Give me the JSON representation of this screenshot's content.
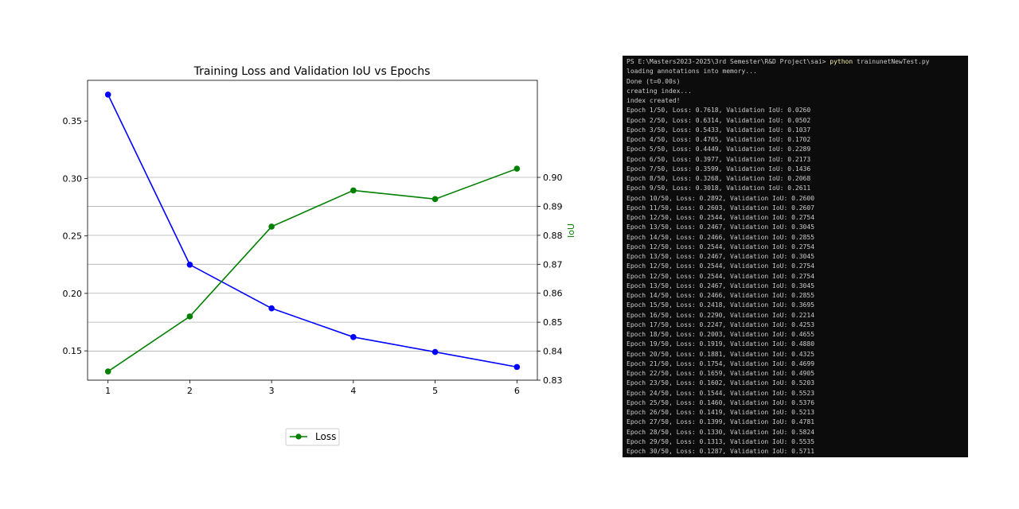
{
  "chart_data": {
    "type": "line",
    "title": "Training Loss and Validation IoU vs Epochs",
    "x": [
      1,
      2,
      3,
      4,
      5,
      6
    ],
    "xticks": [
      "1",
      "2",
      "3",
      "4",
      "5",
      "6"
    ],
    "xlim": [
      0.75,
      6.25
    ],
    "y_left": {
      "label": "",
      "lim": [
        0.1245,
        0.3854
      ],
      "ticks": [
        "0.15",
        "0.20",
        "0.25",
        "0.30",
        "0.35"
      ],
      "tick_values": [
        0.15,
        0.2,
        0.25,
        0.3,
        0.35
      ]
    },
    "y_right": {
      "label": "IoU",
      "label_color": "#008000",
      "lim": [
        0.83,
        0.9335
      ],
      "ticks": [
        "0.83",
        "0.84",
        "0.85",
        "0.86",
        "0.87",
        "0.88",
        "0.89",
        "0.90"
      ],
      "tick_values": [
        0.83,
        0.84,
        0.85,
        0.86,
        0.87,
        0.88,
        0.89,
        0.9
      ]
    },
    "grid": "right-axis horizontal",
    "legend_position": "below chart",
    "series": [
      {
        "name": "",
        "axis": "left",
        "color": "#0000ff",
        "values": [
          0.373,
          0.225,
          0.187,
          0.162,
          0.149,
          0.136
        ]
      },
      {
        "name": "Loss",
        "axis": "right",
        "color": "#008000",
        "values": [
          0.833,
          0.852,
          0.883,
          0.8955,
          0.8925,
          0.903
        ]
      }
    ]
  },
  "terminal": {
    "prompt": "PS E:\\Masters2023-2025\\3rd Semester\\R&D Project\\sai> ",
    "command": "python",
    "args": " trainunetNewTest.py",
    "lines": [
      "loading annotations into memory...",
      "Done (t=0.00s)",
      "creating index...",
      "index created!",
      "Epoch 1/50, Loss: 0.7618, Validation IoU: 0.0260",
      "Epoch 2/50, Loss: 0.6314, Validation IoU: 0.0502",
      "Epoch 3/50, Loss: 0.5433, Validation IoU: 0.1037",
      "Epoch 4/50, Loss: 0.4765, Validation IoU: 0.1702",
      "Epoch 5/50, Loss: 0.4449, Validation IoU: 0.2289",
      "Epoch 6/50, Loss: 0.3977, Validation IoU: 0.2173",
      "Epoch 7/50, Loss: 0.3599, Validation IoU: 0.1436",
      "Epoch 8/50, Loss: 0.3268, Validation IoU: 0.2068",
      "Epoch 9/50, Loss: 0.3018, Validation IoU: 0.2611",
      "Epoch 10/50, Loss: 0.2892, Validation IoU: 0.2600",
      "Epoch 11/50, Loss: 0.2603, Validation IoU: 0.2607",
      "Epoch 12/50, Loss: 0.2544, Validation IoU: 0.2754",
      "Epoch 13/50, Loss: 0.2467, Validation IoU: 0.3045",
      "Epoch 14/50, Loss: 0.2466, Validation IoU: 0.2855",
      "Epoch 12/50, Loss: 0.2544, Validation IoU: 0.2754",
      "Epoch 13/50, Loss: 0.2467, Validation IoU: 0.3045",
      "Epoch 12/50, Loss: 0.2544, Validation IoU: 0.2754",
      "Epoch 12/50, Loss: 0.2544, Validation IoU: 0.2754",
      "Epoch 13/50, Loss: 0.2467, Validation IoU: 0.3045",
      "Epoch 14/50, Loss: 0.2466, Validation IoU: 0.2855",
      "Epoch 15/50, Loss: 0.2418, Validation IoU: 0.3695",
      "Epoch 16/50, Loss: 0.2290, Validation IoU: 0.2214",
      "Epoch 17/50, Loss: 0.2247, Validation IoU: 0.4253",
      "Epoch 18/50, Loss: 0.2003, Validation IoU: 0.4655",
      "Epoch 19/50, Loss: 0.1919, Validation IoU: 0.4880",
      "Epoch 20/50, Loss: 0.1881, Validation IoU: 0.4325",
      "Epoch 21/50, Loss: 0.1754, Validation IoU: 0.4699",
      "Epoch 22/50, Loss: 0.1659, Validation IoU: 0.4905",
      "Epoch 23/50, Loss: 0.1602, Validation IoU: 0.5203",
      "Epoch 24/50, Loss: 0.1544, Validation IoU: 0.5523",
      "Epoch 25/50, Loss: 0.1460, Validation IoU: 0.5376",
      "Epoch 26/50, Loss: 0.1419, Validation IoU: 0.5213",
      "Epoch 27/50, Loss: 0.1399, Validation IoU: 0.4781",
      "Epoch 28/50, Loss: 0.1330, Validation IoU: 0.5824",
      "Epoch 29/50, Loss: 0.1313, Validation IoU: 0.5535",
      "Epoch 30/50, Loss: 0.1287, Validation IoU: 0.5711"
    ]
  }
}
